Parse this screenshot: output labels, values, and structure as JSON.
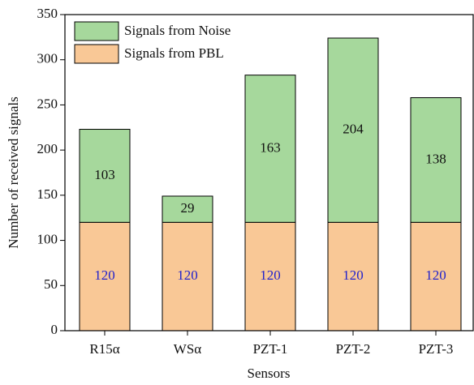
{
  "chart_data": {
    "type": "stacked_bar",
    "xlabel": "Sensors",
    "ylabel": "Number of received signals",
    "categories": [
      "R15α",
      "WSα",
      "PZT-1",
      "PZT-2",
      "PZT-3"
    ],
    "series": [
      {
        "name": "Signals from PBL",
        "color": "#f9c896",
        "label_color": "#2222cc",
        "values": [
          120,
          120,
          120,
          120,
          120
        ]
      },
      {
        "name": "Signals from Noise",
        "color": "#a6d89c",
        "label_color": "#111111",
        "values": [
          103,
          29,
          163,
          204,
          138
        ]
      }
    ],
    "ylim": [
      0,
      350
    ],
    "yticks": [
      0,
      50,
      100,
      150,
      200,
      250,
      300,
      350
    ],
    "legend": "upper left"
  }
}
